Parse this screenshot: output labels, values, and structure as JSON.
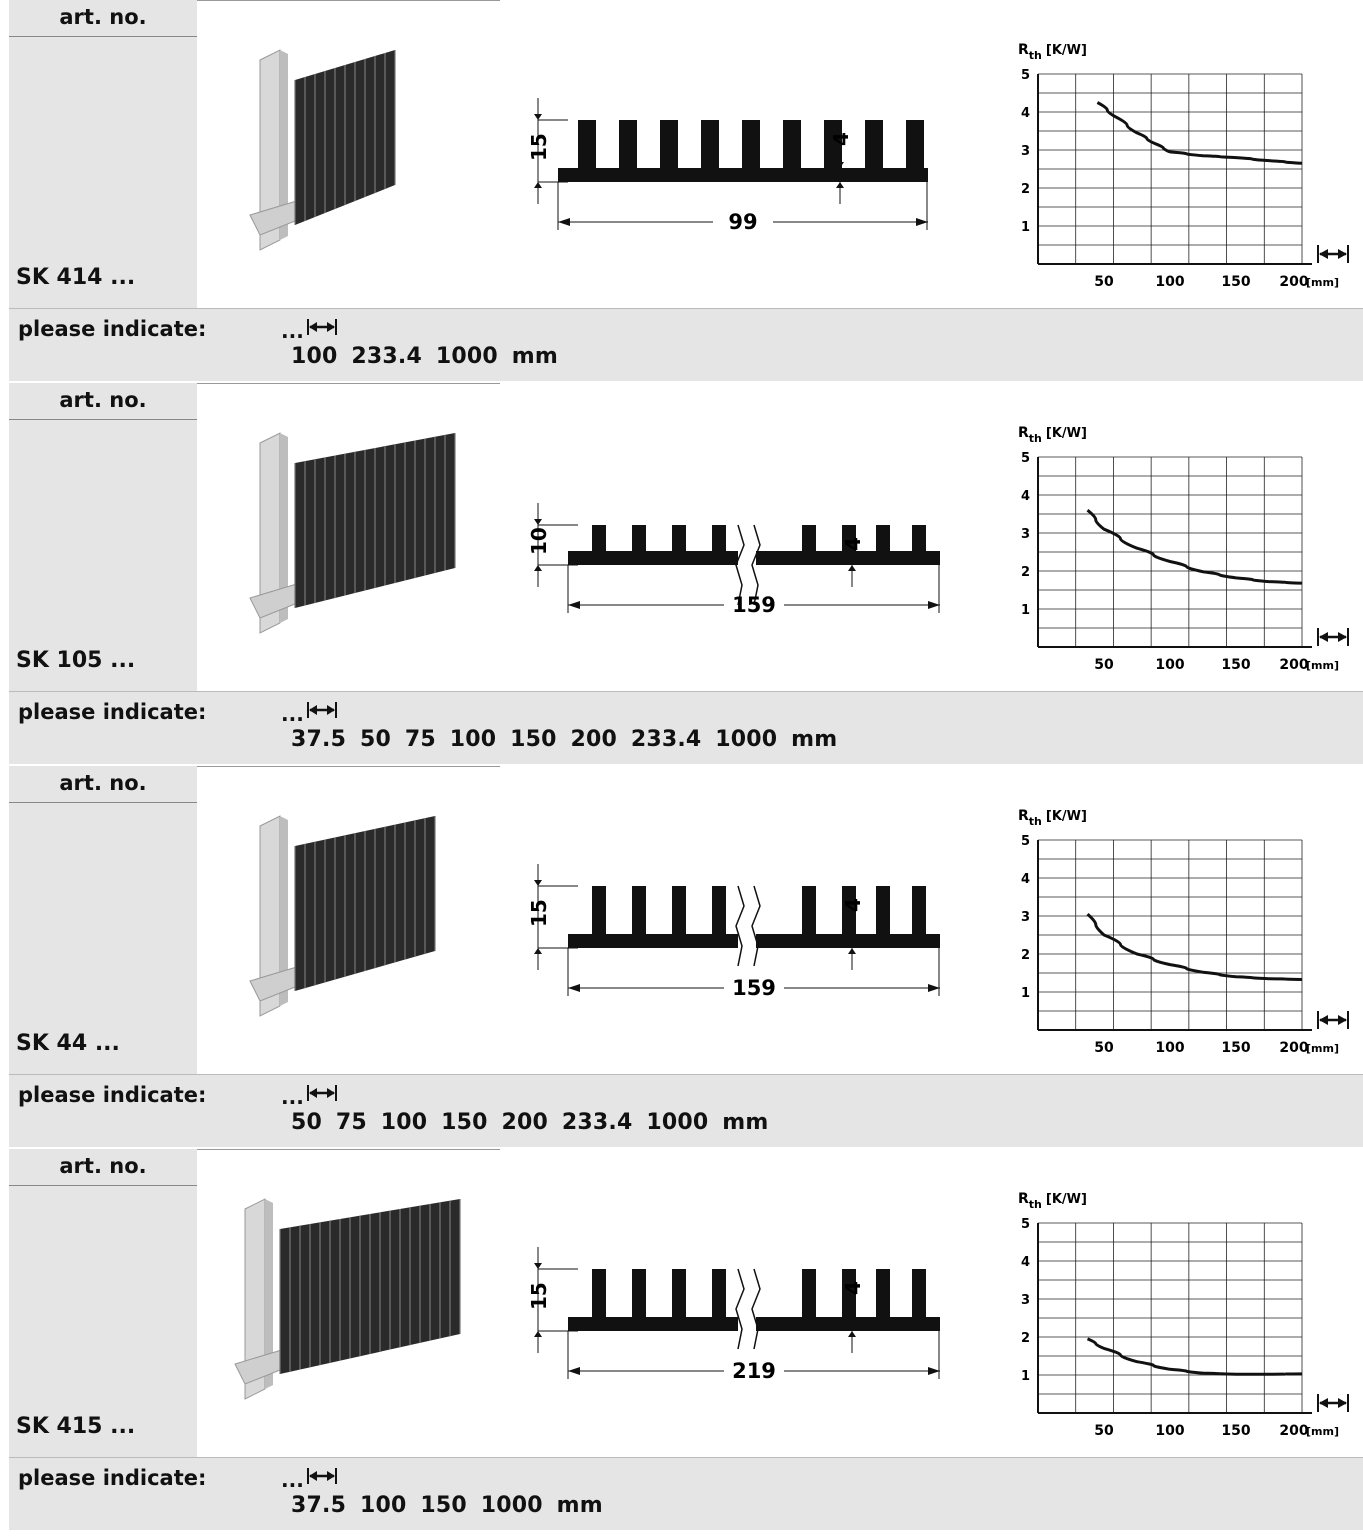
{
  "products": [
    {
      "art_label": "art. no.",
      "art_no": "SK 414 ...",
      "indicate_label": "please indicate:",
      "ellipsis": "...",
      "lengths": "100  233.4  1000 mm",
      "dim_height": "15",
      "dim_fin": "4",
      "dim_width": "99",
      "fins": 10,
      "broken": false,
      "chart_data": {
        "type": "line",
        "ylabel_main": "R",
        "ylabel_sub": "th",
        "ylabel_unit": "[K/W]",
        "xunit": "[mm]",
        "xticks": [
          50,
          100,
          150,
          200
        ],
        "yticks": [
          1,
          2,
          3,
          4,
          5
        ],
        "xlim": [
          0,
          200
        ],
        "ylim": [
          0,
          5
        ],
        "x": [
          45,
          60,
          75,
          90,
          100,
          125,
          150,
          175,
          200
        ],
        "y": [
          4.25,
          3.85,
          3.45,
          3.15,
          2.95,
          2.85,
          2.8,
          2.72,
          2.65
        ]
      }
    },
    {
      "art_label": "art. no.",
      "art_no": "SK 105 ...",
      "indicate_label": "please indicate:",
      "ellipsis": "...",
      "lengths": "37.5  50  75  100  150  200  233.4  1000 mm",
      "dim_height": "10",
      "dim_fin": "4",
      "dim_width": "159",
      "fins": 9,
      "broken": true,
      "chart_data": {
        "type": "line",
        "ylabel_main": "R",
        "ylabel_sub": "th",
        "ylabel_unit": "[K/W]",
        "xunit": "[mm]",
        "xticks": [
          50,
          100,
          150,
          200
        ],
        "yticks": [
          1,
          2,
          3,
          4,
          5
        ],
        "xlim": [
          0,
          200
        ],
        "ylim": [
          0,
          5
        ],
        "x": [
          37.5,
          50,
          75,
          100,
          125,
          150,
          175,
          200
        ],
        "y": [
          3.6,
          3.1,
          2.6,
          2.25,
          1.98,
          1.82,
          1.72,
          1.68
        ]
      }
    },
    {
      "art_label": "art. no.",
      "art_no": "SK 44 ...",
      "indicate_label": "please indicate:",
      "ellipsis": "...",
      "lengths": "50  75  100  150  200  233.4  1000 mm",
      "dim_height": "15",
      "dim_fin": "4",
      "dim_width": "159",
      "fins": 9,
      "broken": true,
      "chart_data": {
        "type": "line",
        "ylabel_main": "R",
        "ylabel_sub": "th",
        "ylabel_unit": "[K/W]",
        "xunit": "[mm]",
        "xticks": [
          50,
          100,
          150,
          200
        ],
        "yticks": [
          1,
          2,
          3,
          4,
          5
        ],
        "xlim": [
          0,
          200
        ],
        "ylim": [
          0,
          5
        ],
        "x": [
          37.5,
          50,
          75,
          100,
          125,
          150,
          175,
          200
        ],
        "y": [
          3.05,
          2.5,
          2.0,
          1.72,
          1.52,
          1.4,
          1.35,
          1.33
        ]
      }
    },
    {
      "art_label": "art. no.",
      "art_no": "SK 415 ...",
      "indicate_label": "please indicate:",
      "ellipsis": "...",
      "lengths": "37.5  100  150  1000 mm",
      "dim_height": "15",
      "dim_fin": "4",
      "dim_width": "219",
      "fins": 9,
      "broken": true,
      "chart_data": {
        "type": "line",
        "ylabel_main": "R",
        "ylabel_sub": "th",
        "ylabel_unit": "[K/W]",
        "xunit": "[mm]",
        "xticks": [
          50,
          100,
          150,
          200
        ],
        "yticks": [
          1,
          2,
          3,
          4,
          5
        ],
        "xlim": [
          0,
          200
        ],
        "ylim": [
          0,
          5
        ],
        "x": [
          37.5,
          50,
          75,
          100,
          125,
          150,
          175,
          200
        ],
        "y": [
          1.95,
          1.7,
          1.35,
          1.15,
          1.05,
          1.02,
          1.02,
          1.03
        ]
      }
    }
  ]
}
